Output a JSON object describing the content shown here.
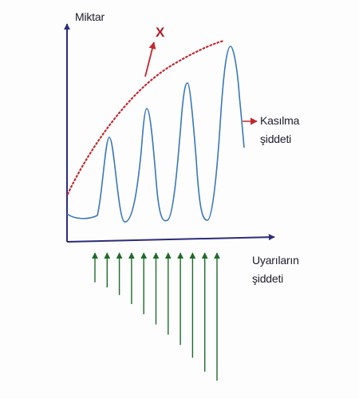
{
  "labels": {
    "y_axis": "Miktar",
    "x_marker": "X",
    "response_line1": "Kasılma",
    "response_line2": "şiddeti",
    "stimulus_line1": "Uyarıların",
    "stimulus_line2": "şiddeti"
  },
  "colors": {
    "axis": "#2b2d7a",
    "contraction_curve": "#3a78b8",
    "x_curve": "#c0282e",
    "x_text": "#b01e24",
    "stimulus_arrows": "#1f6b2a"
  },
  "stimuli": {
    "count": 11,
    "relative_strength": [
      0.23,
      0.27,
      0.33,
      0.4,
      0.48,
      0.56,
      0.64,
      0.72,
      0.82,
      0.93,
      1.0
    ]
  },
  "contractions": {
    "count": 4,
    "relative_peak_height": [
      0.54,
      0.7,
      0.84,
      1.0
    ]
  }
}
